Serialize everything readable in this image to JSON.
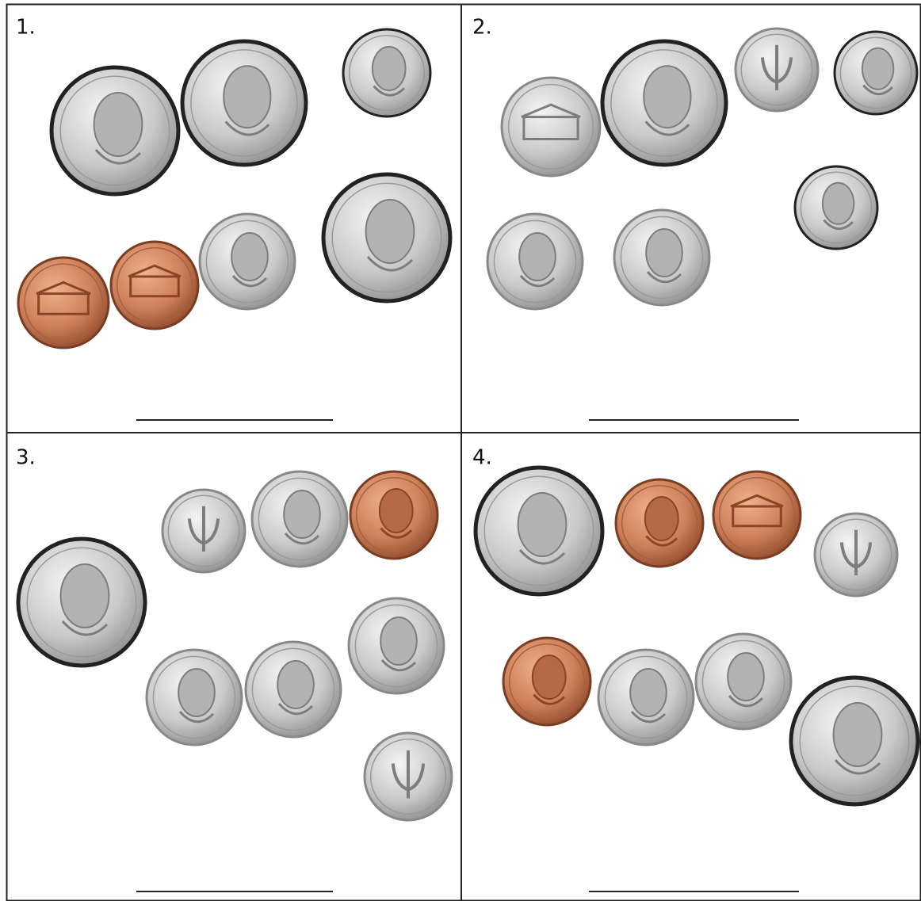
{
  "panels": [
    {
      "label": "1."
    },
    {
      "label": "2."
    },
    {
      "label": "3."
    },
    {
      "label": "4."
    }
  ]
}
